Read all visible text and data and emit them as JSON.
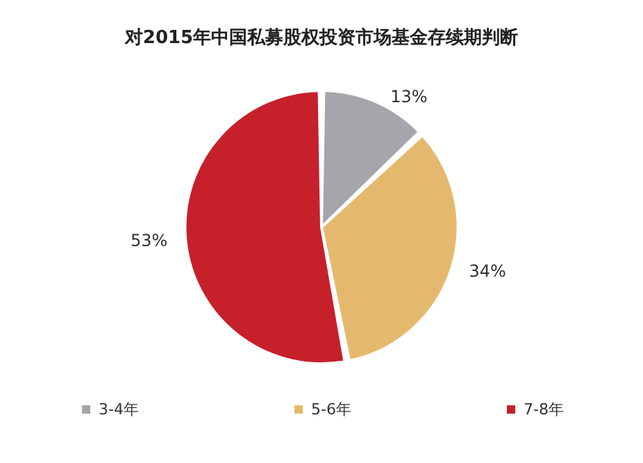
{
  "chart_data": {
    "type": "pie",
    "title": "对2015年中国私募股权投资市场基金存续期判断",
    "categories": [
      "3-4年",
      "5-6年",
      "7-8年"
    ],
    "values": [
      13,
      34,
      53
    ],
    "value_labels": [
      "13%",
      "34%",
      "53%"
    ],
    "colors": [
      "#a5a5ab",
      "#e5b96d",
      "#c6202b"
    ],
    "legend": "bottom"
  }
}
